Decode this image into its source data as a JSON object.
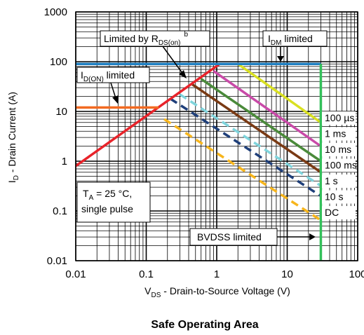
{
  "chart_data": {
    "type": "line",
    "title": "Safe Operating Area",
    "xlabel": {
      "main": "V",
      "sub": "DS",
      "rest": " - Drain-to-Source Voltage (V)"
    },
    "ylabel": {
      "main": "I",
      "sub": "D",
      "rest": " - Drain Current (A)"
    },
    "x_scale": "log",
    "y_scale": "log",
    "xlim": [
      0.01,
      100
    ],
    "ylim": [
      0.01,
      1000
    ],
    "grid": true,
    "x_ticks": [
      {
        "value": 0.01,
        "label": "0.01"
      },
      {
        "value": 0.1,
        "label": "0.1"
      },
      {
        "value": 1,
        "label": "1"
      },
      {
        "value": 10,
        "label": "10"
      },
      {
        "value": 100,
        "label": "100"
      }
    ],
    "y_ticks": [
      {
        "value": 0.01,
        "label": "0.01"
      },
      {
        "value": 0.1,
        "label": "0.1"
      },
      {
        "value": 1,
        "label": "1"
      },
      {
        "value": 10,
        "label": "10"
      },
      {
        "value": 100,
        "label": "100"
      },
      {
        "value": 1000,
        "label": "1000"
      }
    ],
    "series": [
      {
        "name": "100 µs",
        "color": "#d9e021",
        "dash": false,
        "x": [
          2.0,
          30
        ],
        "y": [
          90,
          6
        ]
      },
      {
        "name": "1 ms",
        "color": "#c94aa8",
        "dash": false,
        "x": [
          0.9,
          30
        ],
        "y": [
          65,
          2.0
        ]
      },
      {
        "name": "10 ms",
        "color": "#4a8a3a",
        "dash": false,
        "x": [
          0.6,
          30
        ],
        "y": [
          45,
          1.0
        ]
      },
      {
        "name": "100 ms",
        "color": "#7a3a14",
        "dash": false,
        "x": [
          0.45,
          30
        ],
        "y": [
          35,
          0.6
        ]
      },
      {
        "name": "1 s",
        "color": "#7fd4dc",
        "dash": true,
        "x": [
          0.3,
          30
        ],
        "y": [
          22,
          0.32
        ]
      },
      {
        "name": "10 s",
        "color": "#1f3f7a",
        "dash": true,
        "x": [
          0.22,
          30
        ],
        "y": [
          18,
          0.2
        ]
      },
      {
        "name": "DC",
        "color": "#f7b51c",
        "dash": true,
        "x": [
          0.18,
          30
        ],
        "y": [
          7,
          0.065
        ]
      },
      {
        "name": "Limited by RDS(on)",
        "color": "#e8232a",
        "dash": false,
        "x": [
          0.01,
          1.1
        ],
        "y": [
          0.8,
          90
        ]
      },
      {
        "name": "ID(ON) limited",
        "color": "#f26a21",
        "dash": false,
        "x": [
          0.01,
          0.15
        ],
        "y": [
          12,
          12
        ]
      },
      {
        "name": "IDM limited",
        "color": "#1f7fc1",
        "dash": false,
        "x": [
          0.01,
          30
        ],
        "y": [
          90,
          90
        ]
      },
      {
        "name": "BVDSS limited",
        "color": "#33c05a",
        "dash": false,
        "x": [
          30,
          30
        ],
        "y": [
          0.01,
          90
        ]
      }
    ],
    "annotations": {
      "rds": {
        "main": "Limited by R",
        "sub": "DS(on)",
        "sup": "b"
      },
      "idm": {
        "main": "I",
        "sub": "DM",
        "rest": " limited"
      },
      "idon": {
        "main": "I",
        "sub": "D(ON)",
        "rest": " limited"
      },
      "ta": {
        "line1_main": "T",
        "line1_sub": "A",
        "line1_rest": " = 25 °C,",
        "line2": "single pulse"
      },
      "bvdss": "BVDSS limited"
    }
  }
}
